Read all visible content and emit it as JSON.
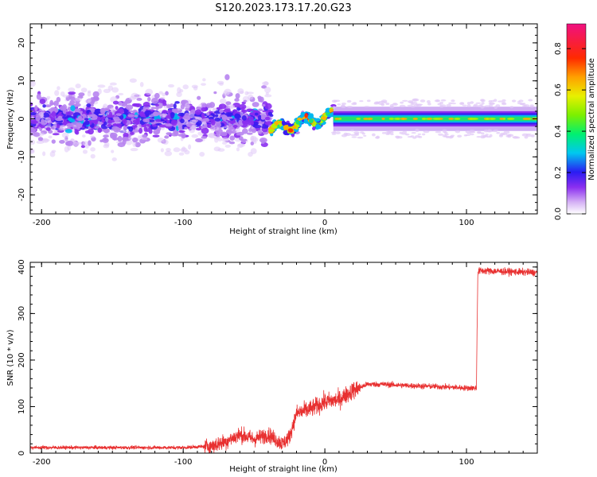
{
  "title": "S120.2023.173.17.20.G23",
  "colors": {
    "snr_line": "#e83030",
    "axis": "#000000",
    "spectrum_band": "#1fd07a",
    "scatter_purple": "#7a22e6"
  },
  "chart_data": [
    {
      "type": "heatmap",
      "xlabel": "Height of straight line (km)",
      "ylabel": "Frequency (Hz)",
      "xlim": [
        -208,
        150
      ],
      "ylim": [
        -25,
        25
      ],
      "xticks": [
        -200,
        -100,
        0,
        100
      ],
      "yticks": [
        -20,
        -10,
        0,
        10,
        20
      ],
      "colorbar": {
        "label": "Normalized spectral amplitude",
        "range": [
          0,
          0.92
        ],
        "ticks": [
          0.0,
          0.2,
          0.4,
          0.6,
          0.8
        ],
        "colormap": "gist_rainbow_reversed"
      },
      "regions": [
        {
          "x": [
            -208,
            -38
          ],
          "description": "noisy scattered",
          "center_freq_hz": 0,
          "spread_hz": 25,
          "amplitude": 0.2
        },
        {
          "x": [
            -38,
            5
          ],
          "description": "emerging signal",
          "center_freq_hz": -2,
          "amplitude": 0.55
        },
        {
          "x": [
            5,
            150
          ],
          "description": "stable tone",
          "center_freq_hz": 0,
          "bandwidth_hz": 2,
          "amplitude": 0.8
        }
      ]
    },
    {
      "type": "line",
      "xlabel": "Height of straight line (km)",
      "ylabel": "SNR (10 * v/v)",
      "xlim": [
        -208,
        150
      ],
      "ylim": [
        0,
        410
      ],
      "xticks": [
        -200,
        -100,
        0,
        100
      ],
      "yticks": [
        0,
        100,
        200,
        300,
        400
      ],
      "series": [
        {
          "color": "#e83030",
          "x": [
            -208,
            -150,
            -100,
            -80,
            -70,
            -60,
            -50,
            -40,
            -30,
            -25,
            -20,
            -10,
            0,
            10,
            20,
            30,
            40,
            60,
            80,
            100,
            107,
            108,
            110,
            130,
            150
          ],
          "y": [
            12,
            12,
            12,
            15,
            25,
            40,
            30,
            40,
            20,
            35,
            85,
            95,
            110,
            115,
            135,
            148,
            148,
            145,
            143,
            140,
            140,
            390,
            392,
            390,
            388
          ]
        }
      ]
    }
  ]
}
